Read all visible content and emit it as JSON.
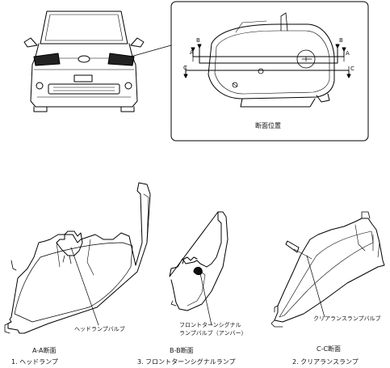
{
  "inset": {
    "title": "断面位置",
    "markers": {
      "a": "A",
      "b": "B",
      "c": "C"
    }
  },
  "callouts": {
    "head_bulb": "ヘッドランプバルブ",
    "turn_bulb_line1": "フロントターンシグナル",
    "turn_bulb_line2": "ランプバルブ（アンバー）",
    "clearance_bulb": "クリアランスランプバルブ"
  },
  "sections": [
    {
      "section": "A-A断面",
      "caption": "1. ヘッドランプ"
    },
    {
      "section": "B-B断面",
      "caption": "3. フロントターンシグナルランプ"
    },
    {
      "section": "C-C断面",
      "caption": "2. クリアランスランプ"
    }
  ]
}
